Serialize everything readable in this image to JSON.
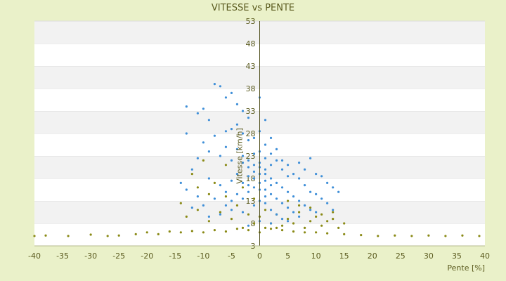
{
  "chart_data": {
    "type": "scatter",
    "title": "VITESSE vs PENTE",
    "xlabel": "Pente [%]",
    "ylabel": "Vitesse [km/h]",
    "xlim": [
      -40,
      40
    ],
    "ylim": [
      3,
      53
    ],
    "x_ticks": [
      "-40",
      "-35",
      "-30",
      "-25",
      "-20",
      "-15",
      "-10",
      "-5",
      "0",
      "5",
      "10",
      "15",
      "20",
      "25",
      "30",
      "35",
      "40"
    ],
    "y_ticks": [
      "3",
      "8",
      "13",
      "18",
      "23",
      "28",
      "33",
      "38",
      "43",
      "48",
      "53"
    ],
    "grid": "horizontal alternating bands",
    "colors": {
      "background": "#eaf1c9",
      "plot_band_light": "#ffffff",
      "plot_band_dark": "#f2f2f2",
      "axis": "#4f4f1c",
      "series_blue": "#3f8fd8",
      "series_olive": "#8a8a16"
    },
    "series": [
      {
        "color": "#8a8a16",
        "points": [
          [
            -40,
            5.2
          ],
          [
            -38,
            5.3
          ],
          [
            -34,
            5.2
          ],
          [
            -30,
            5.5
          ],
          [
            -27,
            5.2
          ],
          [
            -25,
            5.3
          ],
          [
            -22,
            5.6
          ],
          [
            -20,
            6.0
          ],
          [
            -18,
            5.6
          ],
          [
            -16,
            6.2
          ],
          [
            -14,
            6.0
          ],
          [
            -12,
            6.3
          ],
          [
            -10,
            6.0
          ],
          [
            -8,
            6.5
          ],
          [
            -6,
            6.2
          ],
          [
            -4,
            6.8
          ],
          [
            -2,
            6.5
          ],
          [
            0,
            6.0
          ],
          [
            2,
            6.8
          ],
          [
            4,
            6.5
          ],
          [
            6,
            6.2
          ],
          [
            8,
            6.0
          ],
          [
            10,
            6.0
          ],
          [
            12,
            5.8
          ],
          [
            15,
            5.6
          ],
          [
            18,
            5.4
          ],
          [
            21,
            5.2
          ],
          [
            24,
            5.3
          ],
          [
            27,
            5.2
          ],
          [
            30,
            5.3
          ],
          [
            33,
            5.2
          ],
          [
            36,
            5.3
          ],
          [
            39,
            5.2
          ],
          [
            -13,
            9.5
          ],
          [
            -11,
            11.0
          ],
          [
            -9,
            8.5
          ],
          [
            -7,
            10.5
          ],
          [
            -6,
            14.0
          ],
          [
            -5,
            9.0
          ],
          [
            -4,
            12.0
          ],
          [
            -3,
            16.0
          ],
          [
            -2,
            10.0
          ],
          [
            -1,
            13.5
          ],
          [
            0,
            9.5
          ],
          [
            1,
            11.0
          ],
          [
            2,
            8.0
          ],
          [
            3,
            10.0
          ],
          [
            4,
            7.5
          ],
          [
            5,
            9.0
          ],
          [
            6,
            8.0
          ],
          [
            7,
            10.5
          ],
          [
            8,
            7.0
          ],
          [
            9,
            8.5
          ],
          [
            10,
            9.5
          ],
          [
            11,
            7.5
          ],
          [
            12,
            8.5
          ],
          [
            13,
            9.0
          ],
          [
            14,
            7.0
          ],
          [
            15,
            8.0
          ],
          [
            -8,
            17.0
          ],
          [
            -6,
            21.0
          ],
          [
            -9,
            14.5
          ],
          [
            -11,
            16.0
          ],
          [
            -14,
            12.5
          ],
          [
            -12,
            19.0
          ],
          [
            -10,
            22.0
          ],
          [
            5,
            13.0
          ],
          [
            7,
            12.0
          ],
          [
            9,
            11.5
          ],
          [
            11,
            10.0
          ],
          [
            13,
            10.5
          ],
          [
            -3,
            7.0
          ],
          [
            -1,
            8.0
          ],
          [
            1,
            7.0
          ],
          [
            3,
            7.0
          ]
        ]
      },
      {
        "color": "#3f8fd8",
        "points": [
          [
            -8,
            39.0
          ],
          [
            -7,
            38.5
          ],
          [
            -6,
            36.0
          ],
          [
            -5,
            37.0
          ],
          [
            -13,
            34.0
          ],
          [
            -11,
            32.5
          ],
          [
            -10,
            33.5
          ],
          [
            -9,
            31.0
          ],
          [
            -4,
            34.5
          ],
          [
            -3,
            33.0
          ],
          [
            -2,
            31.5
          ],
          [
            0,
            36.0
          ],
          [
            1,
            31.0
          ],
          [
            -13,
            28.0
          ],
          [
            -10,
            26.0
          ],
          [
            -8,
            27.5
          ],
          [
            -6,
            28.5
          ],
          [
            -5,
            29.0
          ],
          [
            -4,
            30.0
          ],
          [
            -3,
            28.0
          ],
          [
            -2,
            26.5
          ],
          [
            -1,
            27.0
          ],
          [
            0,
            28.5
          ],
          [
            1,
            25.5
          ],
          [
            2,
            27.0
          ],
          [
            3,
            24.5
          ],
          [
            4,
            22.0
          ],
          [
            5,
            21.0
          ],
          [
            7,
            21.5
          ],
          [
            8,
            20.0
          ],
          [
            9,
            22.5
          ],
          [
            10,
            19.0
          ],
          [
            11,
            18.5
          ],
          [
            12,
            17.0
          ],
          [
            13,
            16.0
          ],
          [
            14,
            15.0
          ],
          [
            -12,
            20.0
          ],
          [
            -11,
            22.5
          ],
          [
            -9,
            24.0
          ],
          [
            -7,
            23.0
          ],
          [
            -6,
            25.0
          ],
          [
            -5,
            22.0
          ],
          [
            -4,
            24.5
          ],
          [
            -3,
            23.0
          ],
          [
            -2,
            22.0
          ],
          [
            -1,
            23.5
          ],
          [
            0,
            24.0
          ],
          [
            1,
            22.5
          ],
          [
            2,
            21.0
          ],
          [
            3,
            22.0
          ],
          [
            4,
            20.0
          ],
          [
            5,
            18.5
          ],
          [
            6,
            19.0
          ],
          [
            7,
            18.0
          ],
          [
            8,
            16.5
          ],
          [
            9,
            15.0
          ],
          [
            10,
            14.5
          ],
          [
            11,
            13.5
          ],
          [
            12,
            12.5
          ],
          [
            13,
            11.0
          ],
          [
            -14,
            17.0
          ],
          [
            -13,
            15.5
          ],
          [
            -11,
            14.0
          ],
          [
            -9,
            18.0
          ],
          [
            -7,
            16.5
          ],
          [
            -6,
            15.0
          ],
          [
            -5,
            17.5
          ],
          [
            -4,
            19.0
          ],
          [
            -3,
            17.0
          ],
          [
            -2,
            18.5
          ],
          [
            -1,
            19.5
          ],
          [
            0,
            20.5
          ],
          [
            1,
            19.0
          ],
          [
            2,
            18.0
          ],
          [
            3,
            17.0
          ],
          [
            4,
            16.0
          ],
          [
            5,
            15.0
          ],
          [
            6,
            14.0
          ],
          [
            7,
            13.0
          ],
          [
            8,
            12.0
          ],
          [
            9,
            11.0
          ],
          [
            10,
            10.5
          ],
          [
            -12,
            11.5
          ],
          [
            -10,
            12.0
          ],
          [
            -8,
            13.5
          ],
          [
            -6,
            12.0
          ],
          [
            -5,
            13.0
          ],
          [
            -4,
            14.5
          ],
          [
            -3,
            13.5
          ],
          [
            -2,
            15.0
          ],
          [
            -1,
            16.0
          ],
          [
            0,
            17.0
          ],
          [
            1,
            15.5
          ],
          [
            2,
            14.5
          ],
          [
            3,
            13.5
          ],
          [
            4,
            12.5
          ],
          [
            5,
            11.5
          ],
          [
            6,
            10.5
          ],
          [
            7,
            9.5
          ],
          [
            -9,
            9.5
          ],
          [
            -7,
            10.0
          ],
          [
            -5,
            11.0
          ],
          [
            -3,
            10.5
          ],
          [
            -1,
            12.0
          ],
          [
            0,
            13.0
          ],
          [
            1,
            12.5
          ],
          [
            2,
            11.0
          ],
          [
            3,
            10.0
          ],
          [
            4,
            9.0
          ],
          [
            5,
            8.5
          ],
          [
            -2,
            7.5
          ],
          [
            0,
            8.5
          ],
          [
            2,
            8.0
          ],
          [
            -1,
            21.0
          ],
          [
            0,
            21.5
          ],
          [
            1,
            20.0
          ],
          [
            -2,
            20.5
          ],
          [
            2,
            23.5
          ],
          [
            -3,
            21.5
          ],
          [
            0,
            19.0
          ],
          [
            1,
            17.5
          ],
          [
            -1,
            18.0
          ],
          [
            0,
            15.5
          ],
          [
            2,
            16.5
          ],
          [
            -2,
            16.5
          ],
          [
            1,
            14.0
          ]
        ]
      }
    ]
  }
}
